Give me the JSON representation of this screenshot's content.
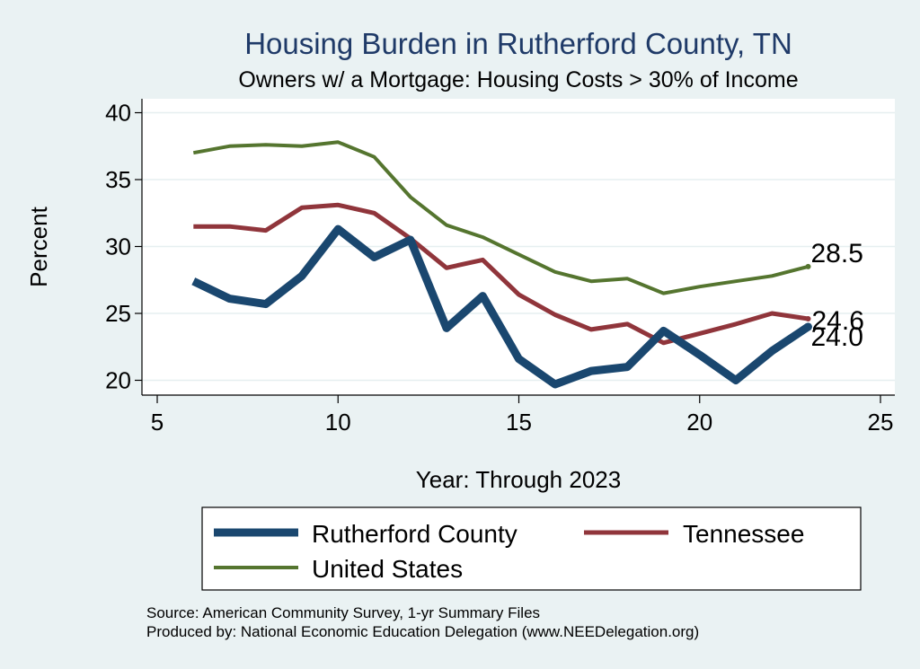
{
  "chart_data": {
    "type": "line",
    "title": "Housing Burden in Rutherford County, TN",
    "subtitle": "Owners w/ a Mortgage: Housing Costs > 30% of Income",
    "xlabel": "Year: Through 2023",
    "ylabel": "Percent",
    "xlim": [
      5,
      25
    ],
    "ylim": [
      19.5,
      40.5
    ],
    "xticks": [
      5,
      10,
      15,
      20,
      25
    ],
    "yticks": [
      20,
      25,
      30,
      35,
      40
    ],
    "grid": true,
    "series": [
      {
        "name": "Rutherford County",
        "color": "#1a476f",
        "x": [
          6,
          7,
          8,
          9,
          10,
          11,
          12,
          13,
          14,
          15,
          16,
          17,
          18,
          19,
          20,
          21,
          22,
          23
        ],
        "y": [
          27.4,
          26.1,
          25.7,
          27.8,
          31.3,
          29.2,
          30.5,
          23.9,
          26.3,
          21.6,
          19.7,
          20.7,
          21.0,
          23.7,
          21.9,
          20.0,
          22.2,
          24.0
        ],
        "end_label": "24.0"
      },
      {
        "name": "Tennessee",
        "color": "#90353b",
        "x": [
          6,
          7,
          8,
          9,
          10,
          11,
          12,
          13,
          14,
          15,
          16,
          17,
          18,
          19,
          20,
          21,
          22,
          23
        ],
        "y": [
          31.5,
          31.5,
          31.2,
          32.9,
          33.1,
          32.5,
          30.6,
          28.4,
          29.0,
          26.4,
          24.9,
          23.8,
          24.2,
          22.8,
          23.5,
          24.2,
          25.0,
          24.6
        ],
        "end_label": "24.6"
      },
      {
        "name": "United States",
        "color": "#55752f",
        "x": [
          6,
          7,
          8,
          9,
          10,
          11,
          12,
          13,
          14,
          15,
          16,
          17,
          18,
          19,
          20,
          21,
          22,
          23
        ],
        "y": [
          37.0,
          37.5,
          37.6,
          37.5,
          37.8,
          36.7,
          33.7,
          31.6,
          30.7,
          29.4,
          28.1,
          27.4,
          27.6,
          26.5,
          27.0,
          27.4,
          27.8,
          28.5
        ],
        "end_label": "28.5"
      }
    ],
    "legend": {
      "position": "bottom",
      "entries": [
        "Rutherford County",
        "Tennessee",
        "United States"
      ]
    },
    "source": [
      "Source: American Community Survey, 1-yr Summary Files",
      "Produced by: National Economic Education Delegation (www.NEEDelegation.org)"
    ]
  }
}
